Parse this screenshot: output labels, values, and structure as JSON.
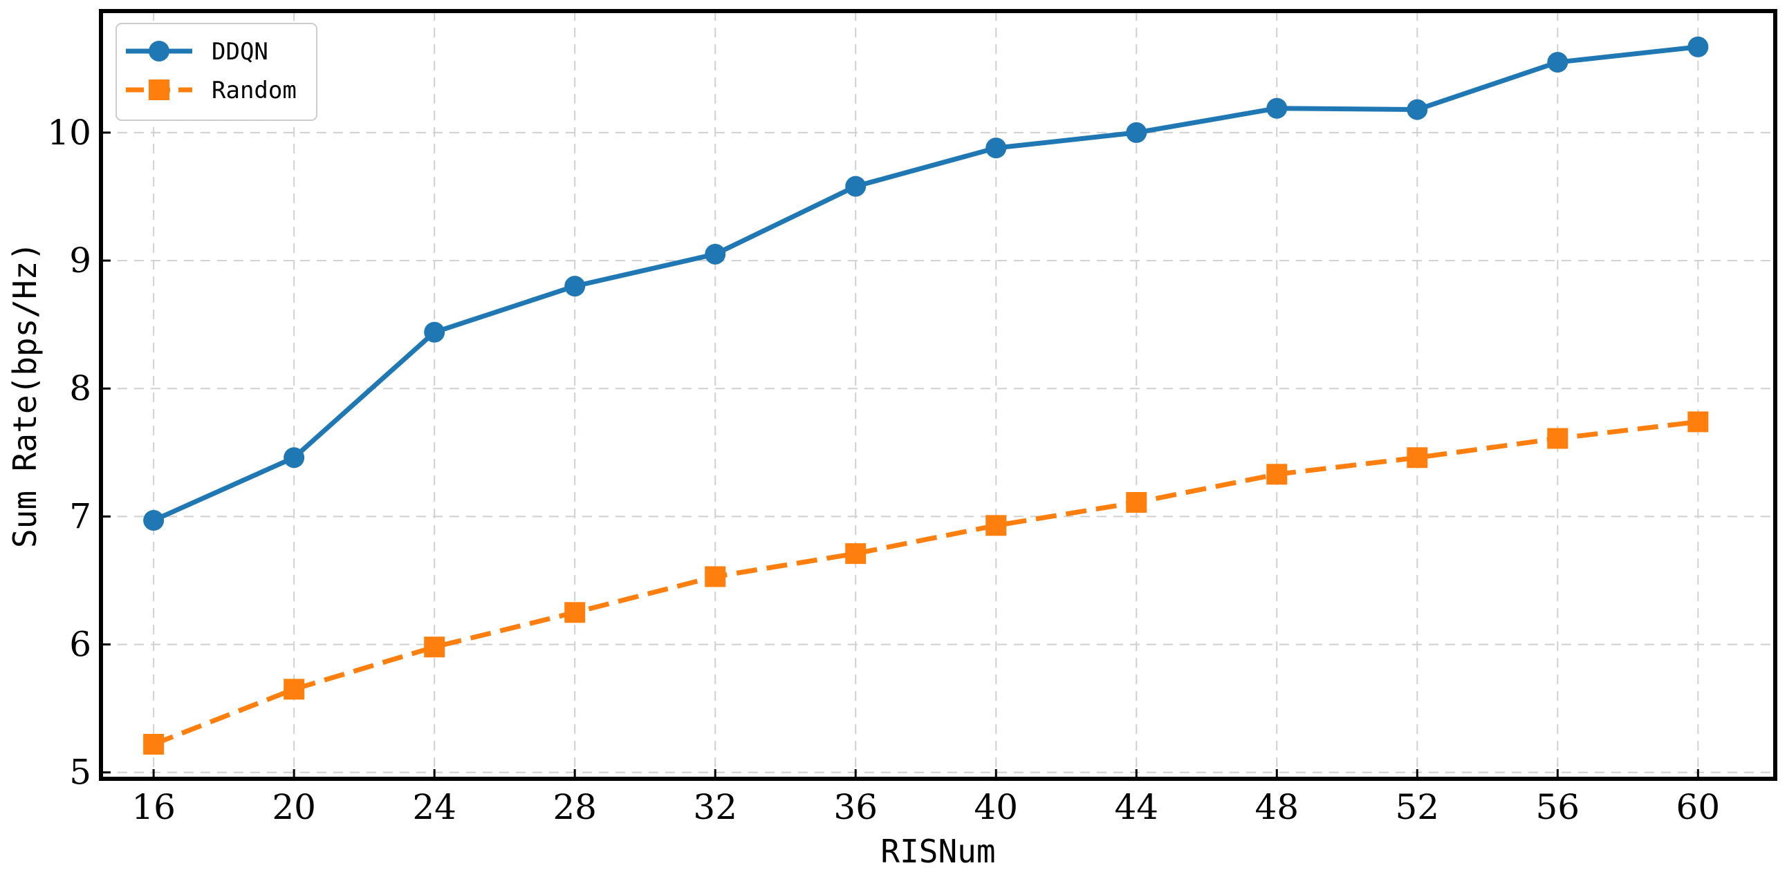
{
  "chart_data": {
    "type": "line",
    "xlabel": "RISNum",
    "ylabel": "Sum Rate(bps/Hz)",
    "x": [
      16,
      20,
      24,
      28,
      32,
      36,
      40,
      44,
      48,
      52,
      56,
      60
    ],
    "xticks": [
      "16",
      "20",
      "24",
      "28",
      "32",
      "36",
      "40",
      "44",
      "48",
      "52",
      "56",
      "60"
    ],
    "yticks": [
      "5",
      "6",
      "7",
      "8",
      "9",
      "10"
    ],
    "xlim": [
      14.5,
      62.2
    ],
    "ylim": [
      4.95,
      10.95
    ],
    "grid": true,
    "legend_position": "top-left",
    "series": [
      {
        "name": "DDQN",
        "color": "#1f77b4",
        "marker": "circle",
        "linestyle": "solid",
        "values": [
          6.97,
          7.46,
          8.44,
          8.8,
          9.05,
          9.58,
          9.88,
          10.0,
          10.19,
          10.18,
          10.55,
          10.67
        ]
      },
      {
        "name": "Random",
        "color": "#ff7f0e",
        "marker": "square",
        "linestyle": "dashed",
        "values": [
          5.22,
          5.65,
          5.98,
          6.25,
          6.53,
          6.71,
          6.93,
          7.11,
          7.33,
          7.46,
          7.61,
          7.74
        ]
      }
    ]
  }
}
